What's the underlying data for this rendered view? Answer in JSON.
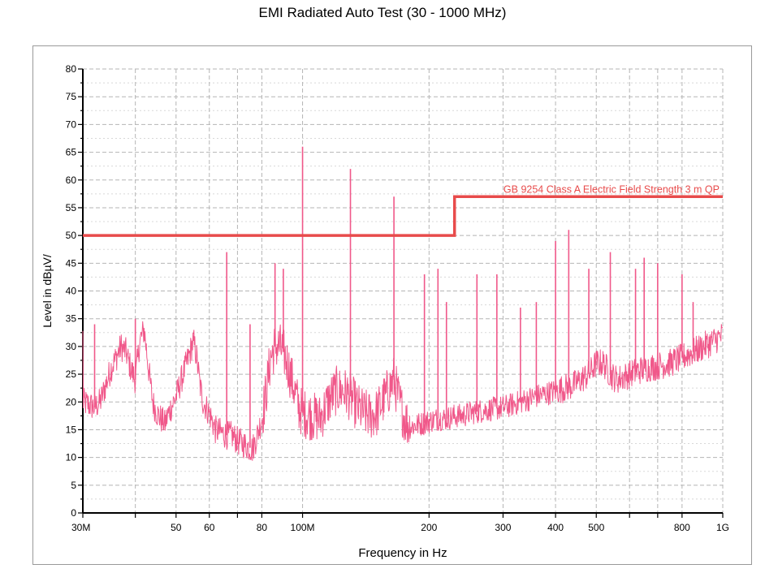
{
  "page": {
    "title": "EMI Radiated Auto Test (30 - 1000 MHz)"
  },
  "chart_data": {
    "type": "line",
    "title": "EMI Radiated Auto Test (30 - 1000 MHz)",
    "xlabel": "Frequency in Hz",
    "ylabel": "Level in dBµV/",
    "xscale": "log",
    "xlim": [
      30,
      1000
    ],
    "ylim": [
      0,
      80
    ],
    "grid": true,
    "x_ticks": [
      {
        "value": 30,
        "label": "30M"
      },
      {
        "value": 40,
        "label": ""
      },
      {
        "value": 50,
        "label": "50"
      },
      {
        "value": 60,
        "label": "60"
      },
      {
        "value": 70,
        "label": ""
      },
      {
        "value": 80,
        "label": "80"
      },
      {
        "value": 100,
        "label": "100M"
      },
      {
        "value": 200,
        "label": "200"
      },
      {
        "value": 300,
        "label": "300"
      },
      {
        "value": 400,
        "label": "400"
      },
      {
        "value": 500,
        "label": "500"
      },
      {
        "value": 600,
        "label": ""
      },
      {
        "value": 700,
        "label": ""
      },
      {
        "value": 800,
        "label": "800"
      },
      {
        "value": 1000,
        "label": "1G"
      }
    ],
    "y_ticks": [
      0,
      5,
      10,
      15,
      20,
      25,
      30,
      35,
      40,
      45,
      50,
      55,
      60,
      65,
      70,
      75,
      80
    ],
    "limit_line": {
      "name": "GB 9254 Class A Electric Field Strength 3 m QP",
      "color": "#e84b4b",
      "points": [
        [
          30,
          50
        ],
        [
          230,
          50
        ],
        [
          230,
          57
        ],
        [
          1000,
          57
        ]
      ]
    },
    "series": [
      {
        "color": "#f0588a",
        "x": [
          30,
          31,
          32,
          33,
          34,
          35,
          36,
          37,
          38,
          39,
          40,
          41,
          42,
          43,
          44,
          45,
          46,
          47,
          48,
          50,
          52,
          54,
          55,
          56,
          57,
          58,
          60,
          62,
          64,
          66,
          68,
          70,
          72,
          74,
          76,
          78,
          80,
          82,
          84,
          86,
          88,
          90,
          92,
          95,
          98,
          100,
          105,
          110,
          115,
          120,
          125,
          130,
          135,
          140,
          145,
          150,
          155,
          160,
          165,
          170,
          175,
          180,
          190,
          200,
          210,
          220,
          230,
          240,
          250,
          270,
          300,
          330,
          360,
          400,
          440,
          480,
          500,
          520,
          540,
          560,
          600,
          650,
          700,
          750,
          800,
          850,
          900,
          950,
          1000
        ],
        "y": [
          20,
          19.5,
          19,
          20,
          23,
          26,
          28,
          30,
          29,
          26,
          24,
          31,
          33,
          26,
          20,
          18,
          17,
          16,
          18,
          21,
          25,
          29,
          31,
          28,
          23,
          20,
          18,
          15,
          14.5,
          14,
          14,
          13,
          12.5,
          12,
          11.5,
          14,
          17,
          22,
          28,
          30,
          30,
          29,
          27,
          23,
          19,
          18,
          17.5,
          17,
          20,
          22,
          22,
          21,
          19,
          18,
          17.5,
          18,
          20,
          22,
          24,
          20,
          17,
          15.5,
          16,
          16.5,
          17,
          17,
          17.5,
          17.5,
          18,
          18.5,
          19,
          20,
          21,
          22,
          23,
          25,
          27,
          27,
          25,
          24,
          25,
          26,
          26.5,
          27,
          28,
          29,
          30,
          31,
          32
        ],
        "spikes": [
          [
            32,
            34
          ],
          [
            37,
            31
          ],
          [
            40,
            35
          ],
          [
            55,
            32
          ],
          [
            66,
            47
          ],
          [
            75,
            34
          ],
          [
            86,
            45
          ],
          [
            90,
            44
          ],
          [
            100,
            66
          ],
          [
            130,
            62
          ],
          [
            165,
            57
          ],
          [
            195,
            43
          ],
          [
            210,
            44
          ],
          [
            220,
            38
          ],
          [
            260,
            43
          ],
          [
            290,
            43
          ],
          [
            330,
            37
          ],
          [
            360,
            38
          ],
          [
            400,
            49
          ],
          [
            430,
            51
          ],
          [
            480,
            44
          ],
          [
            540,
            47
          ],
          [
            620,
            44
          ],
          [
            650,
            46
          ],
          [
            700,
            45
          ],
          [
            800,
            43
          ],
          [
            850,
            38
          ]
        ]
      }
    ]
  }
}
